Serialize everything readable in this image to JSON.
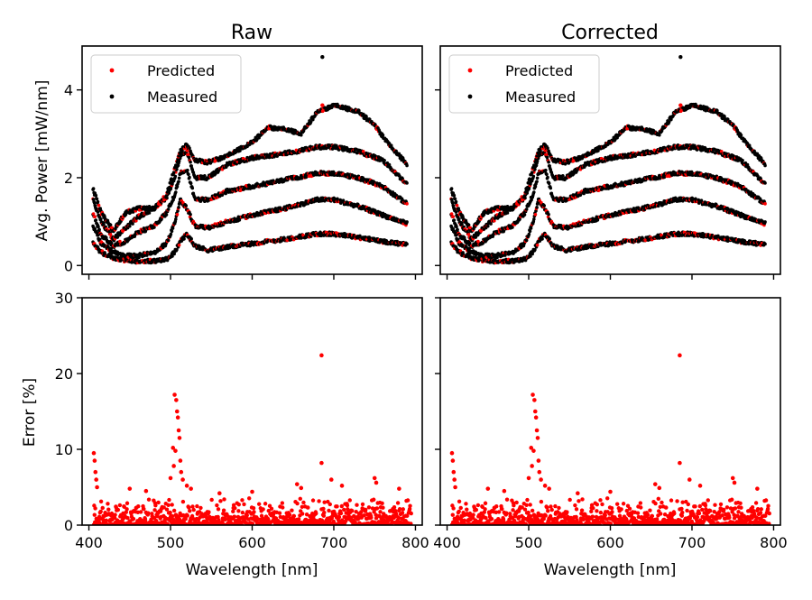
{
  "figure": {
    "panels": [
      {
        "id": "raw-power",
        "title": "Raw"
      },
      {
        "id": "corrected-power",
        "title": "Corrected"
      }
    ],
    "xlabel": "Wavelength [nm]",
    "top_ylabel": "Avg. Power [mW/nm]",
    "bottom_ylabel": "Error [%]",
    "legend": {
      "placement": "upper-left",
      "entries": [
        {
          "label": "Predicted",
          "color": "#ff0000"
        },
        {
          "label": "Measured",
          "color": "#000000"
        }
      ]
    }
  },
  "chart_data": [
    {
      "type": "scatter",
      "title": "Raw",
      "xlabel": "",
      "ylabel": "Avg. Power [mW/nm]",
      "xlim": [
        400,
        800
      ],
      "ylim": [
        -0.2,
        5
      ],
      "yticks": [
        0,
        2,
        4
      ],
      "xticks": [
        400,
        500,
        600,
        700,
        800
      ],
      "series_names": [
        "Predicted",
        "Measured"
      ],
      "curves": [
        {
          "points": [
            [
              405,
              0.5
            ],
            [
              415,
              0.3
            ],
            [
              430,
              0.18
            ],
            [
              445,
              0.12
            ],
            [
              460,
              0.1
            ],
            [
              480,
              0.1
            ],
            [
              495,
              0.14
            ],
            [
              505,
              0.3
            ],
            [
              512,
              0.55
            ],
            [
              520,
              0.72
            ],
            [
              530,
              0.45
            ],
            [
              545,
              0.35
            ],
            [
              570,
              0.42
            ],
            [
              600,
              0.5
            ],
            [
              640,
              0.6
            ],
            [
              680,
              0.72
            ],
            [
              700,
              0.72
            ],
            [
              730,
              0.64
            ],
            [
              760,
              0.55
            ],
            [
              790,
              0.48
            ]
          ]
        },
        {
          "points": [
            [
              405,
              0.9
            ],
            [
              415,
              0.5
            ],
            [
              430,
              0.3
            ],
            [
              445,
              0.22
            ],
            [
              460,
              0.22
            ],
            [
              480,
              0.3
            ],
            [
              495,
              0.5
            ],
            [
              505,
              0.95
            ],
            [
              512,
              1.5
            ],
            [
              520,
              1.3
            ],
            [
              530,
              0.9
            ],
            [
              545,
              0.85
            ],
            [
              570,
              1.0
            ],
            [
              600,
              1.15
            ],
            [
              640,
              1.3
            ],
            [
              680,
              1.5
            ],
            [
              700,
              1.5
            ],
            [
              730,
              1.35
            ],
            [
              760,
              1.15
            ],
            [
              790,
              0.95
            ]
          ]
        },
        {
          "points": [
            [
              405,
              1.2
            ],
            [
              415,
              0.7
            ],
            [
              430,
              0.45
            ],
            [
              445,
              0.55
            ],
            [
              460,
              0.75
            ],
            [
              480,
              0.9
            ],
            [
              495,
              1.2
            ],
            [
              505,
              1.6
            ],
            [
              512,
              2.1
            ],
            [
              520,
              2.2
            ],
            [
              530,
              1.5
            ],
            [
              545,
              1.5
            ],
            [
              570,
              1.7
            ],
            [
              600,
              1.8
            ],
            [
              640,
              1.95
            ],
            [
              680,
              2.1
            ],
            [
              700,
              2.1
            ],
            [
              730,
              2.0
            ],
            [
              760,
              1.8
            ],
            [
              790,
              1.4
            ]
          ]
        },
        {
          "points": [
            [
              405,
              1.5
            ],
            [
              415,
              1.0
            ],
            [
              430,
              0.6
            ],
            [
              445,
              0.85
            ],
            [
              460,
              1.1
            ],
            [
              480,
              1.3
            ],
            [
              495,
              1.55
            ],
            [
              505,
              2.0
            ],
            [
              512,
              2.5
            ],
            [
              520,
              2.6
            ],
            [
              530,
              2.0
            ],
            [
              545,
              2.0
            ],
            [
              570,
              2.3
            ],
            [
              600,
              2.45
            ],
            [
              640,
              2.55
            ],
            [
              680,
              2.7
            ],
            [
              700,
              2.7
            ],
            [
              730,
              2.6
            ],
            [
              760,
              2.4
            ],
            [
              790,
              1.85
            ]
          ]
        },
        {
          "points": [
            [
              405,
              1.75
            ],
            [
              415,
              1.2
            ],
            [
              430,
              0.8
            ],
            [
              445,
              1.2
            ],
            [
              460,
              1.3
            ],
            [
              480,
              1.3
            ],
            [
              495,
              1.6
            ],
            [
              505,
              2.2
            ],
            [
              512,
              2.6
            ],
            [
              520,
              2.75
            ],
            [
              530,
              2.4
            ],
            [
              545,
              2.35
            ],
            [
              570,
              2.5
            ],
            [
              600,
              2.8
            ],
            [
              620,
              3.15
            ],
            [
              640,
              3.1
            ],
            [
              660,
              3.0
            ],
            [
              680,
              3.5
            ],
            [
              700,
              3.65
            ],
            [
              730,
              3.5
            ],
            [
              750,
              3.2
            ],
            [
              770,
              2.7
            ],
            [
              790,
              2.3
            ]
          ]
        }
      ],
      "outliers": [
        [
          686,
          4.75,
          "Measured"
        ],
        [
          686,
          3.65,
          "Predicted"
        ]
      ]
    },
    {
      "type": "scatter",
      "title": "Corrected",
      "xlabel": "",
      "ylabel": "",
      "xlim": [
        400,
        800
      ],
      "ylim": [
        -0.2,
        5
      ],
      "yticks": [
        0,
        2,
        4
      ],
      "xticks": [
        400,
        500,
        600,
        700,
        800
      ],
      "series_names": [
        "Predicted",
        "Measured"
      ],
      "same_curves_as": "Raw",
      "outliers": [
        [
          686,
          4.75,
          "Measured"
        ],
        [
          686,
          3.65,
          "Predicted"
        ]
      ]
    },
    {
      "type": "scatter",
      "title": "",
      "xlabel": "Wavelength [nm]",
      "ylabel": "Error [%]",
      "xlim": [
        400,
        800
      ],
      "ylim": [
        0,
        30
      ],
      "yticks": [
        0,
        10,
        20,
        30
      ],
      "xticks": [
        400,
        500,
        600,
        700,
        800
      ],
      "series_color": "#ff0000",
      "baseline_max": 3.5,
      "notable_points": [
        [
          406,
          9.5
        ],
        [
          407,
          8.5
        ],
        [
          408,
          7.0
        ],
        [
          409,
          6.0
        ],
        [
          410,
          5.0
        ],
        [
          505,
          17.2
        ],
        [
          507,
          16.5
        ],
        [
          508,
          15.0
        ],
        [
          509,
          14.2
        ],
        [
          510,
          12.5
        ],
        [
          511,
          11.5
        ],
        [
          503,
          10.2
        ],
        [
          506,
          9.8
        ],
        [
          512,
          8.5
        ],
        [
          504,
          7.8
        ],
        [
          513,
          7.0
        ],
        [
          500,
          6.2
        ],
        [
          515,
          6.0
        ],
        [
          520,
          5.2
        ],
        [
          525,
          4.8
        ],
        [
          685,
          22.4
        ],
        [
          685,
          8.2
        ],
        [
          697,
          6.0
        ],
        [
          710,
          5.2
        ],
        [
          750,
          6.2
        ],
        [
          752,
          5.6
        ],
        [
          655,
          5.4
        ],
        [
          660,
          4.9
        ],
        [
          780,
          4.8
        ],
        [
          450,
          4.8
        ],
        [
          470,
          4.5
        ],
        [
          560,
          4.2
        ],
        [
          600,
          4.4
        ]
      ]
    },
    {
      "type": "scatter",
      "title": "",
      "xlabel": "Wavelength [nm]",
      "ylabel": "",
      "xlim": [
        400,
        800
      ],
      "ylim": [
        0,
        30
      ],
      "yticks": [
        0,
        10,
        20,
        30
      ],
      "xticks": [
        400,
        500,
        600,
        700,
        800
      ],
      "series_color": "#ff0000",
      "baseline_max": 3.5,
      "same_points_as": 2
    }
  ]
}
